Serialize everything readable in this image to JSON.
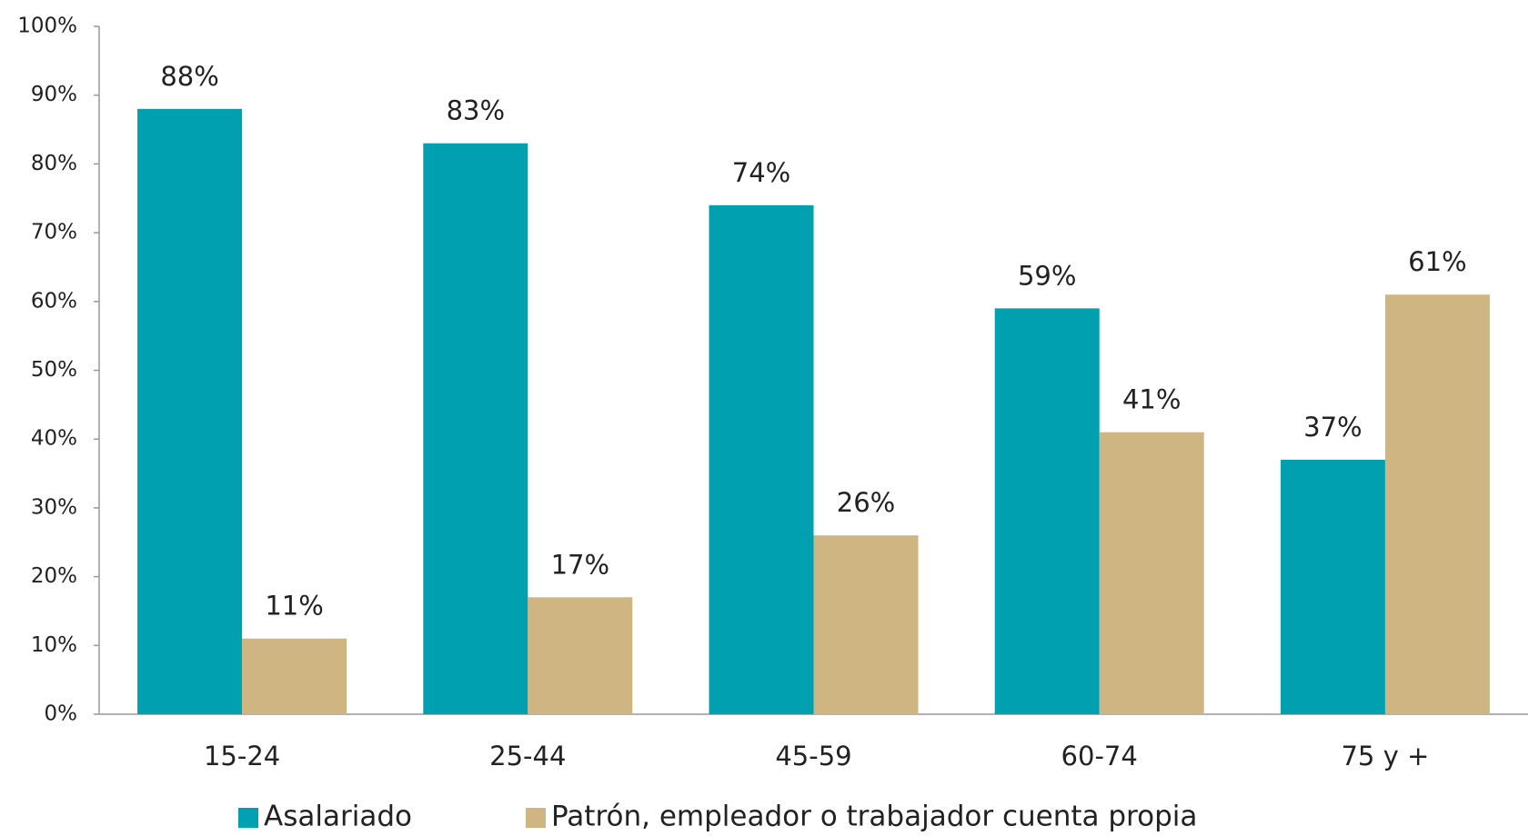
{
  "chart_data": {
    "type": "bar",
    "categories": [
      "15-24",
      "25-44",
      "45-59",
      "60-74",
      "75 y +"
    ],
    "series": [
      {
        "name": "Asalariado",
        "color": "#00a0b1",
        "values": [
          88,
          83,
          74,
          59,
          37
        ],
        "value_labels": [
          "88%",
          "83%",
          "74%",
          "59%",
          "37%"
        ]
      },
      {
        "name": "Patrón, empleador o trabajador cuenta propia",
        "color": "#ceb582",
        "values": [
          11,
          17,
          26,
          41,
          61
        ],
        "value_labels": [
          "11%",
          "17%",
          "26%",
          "41%",
          "61%"
        ]
      }
    ],
    "ylim": [
      0,
      100
    ],
    "yticks": [
      {
        "value": 0,
        "label": "0%"
      },
      {
        "value": 10,
        "label": "10%"
      },
      {
        "value": 20,
        "label": "20%"
      },
      {
        "value": 30,
        "label": "30%"
      },
      {
        "value": 40,
        "label": "40%"
      },
      {
        "value": 50,
        "label": "50%"
      },
      {
        "value": 60,
        "label": "60%"
      },
      {
        "value": 70,
        "label": "70%"
      },
      {
        "value": 80,
        "label": "80%"
      },
      {
        "value": 90,
        "label": "90%"
      },
      {
        "value": 100,
        "label": "100%"
      }
    ],
    "grid": false,
    "legend": "bottom"
  }
}
